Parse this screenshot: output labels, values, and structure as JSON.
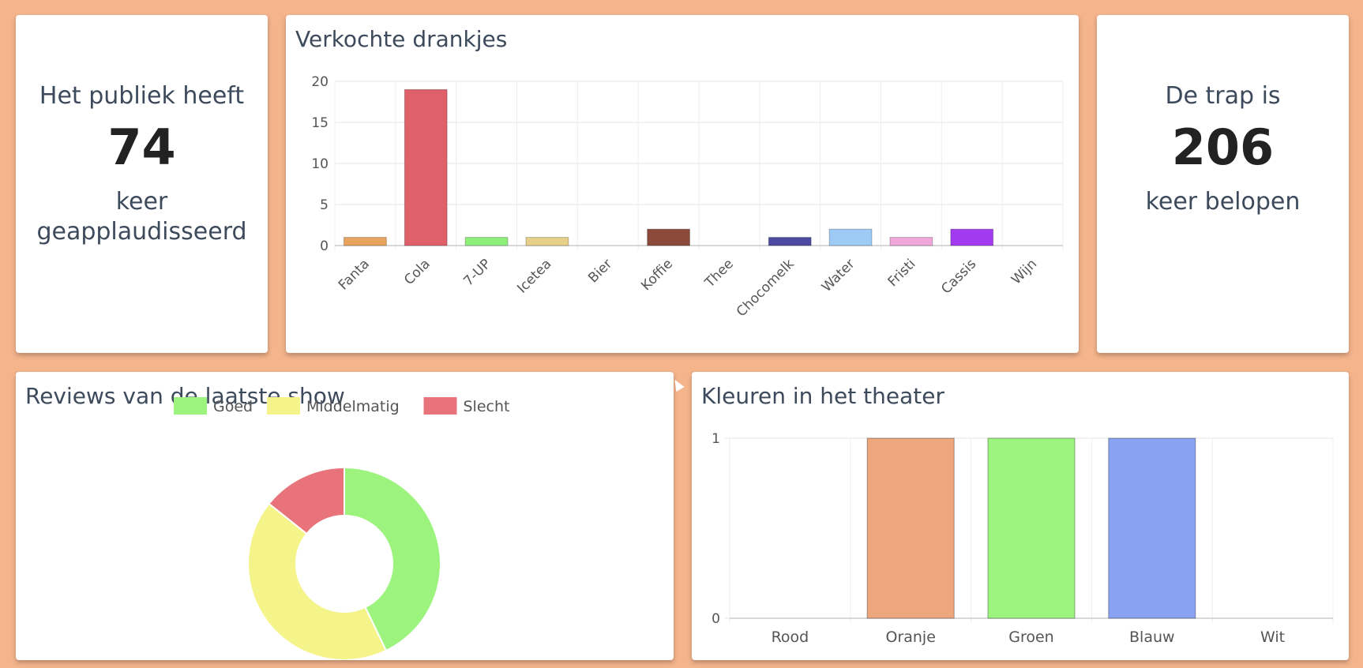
{
  "applause": {
    "prefix": "Het publiek heeft",
    "count": "74",
    "suffix_1": "keer",
    "suffix_2": "geapplaudisseerd"
  },
  "stairs": {
    "prefix": "De trap is",
    "count": "206",
    "suffix": "keer belopen"
  },
  "drinks": {
    "title": "Verkochte drankjes"
  },
  "reviews": {
    "title": "Reviews van de laatste show"
  },
  "colors_card": {
    "title": "Kleuren in het theater"
  },
  "chart_data": [
    {
      "type": "bar",
      "title": "Verkochte drankjes",
      "categories": [
        "Fanta",
        "Cola",
        "7-UP",
        "Icetea",
        "Bier",
        "Koffie",
        "Thee",
        "Chocomelk",
        "Water",
        "Fristi",
        "Cassis",
        "Wijn"
      ],
      "values": [
        1,
        19,
        1,
        1,
        0,
        2,
        0,
        1,
        2,
        1,
        2,
        0
      ],
      "colors": [
        "#e8a35c",
        "#e0606a",
        "#8ef07a",
        "#e6cf88",
        "#cccccc",
        "#8b4a3a",
        "#cccccc",
        "#4b4aa0",
        "#9ecbf6",
        "#f1a6dc",
        "#a23af0",
        "#cccccc"
      ],
      "ylim": [
        0,
        20
      ],
      "yticks": [
        0,
        5,
        10,
        15,
        20
      ],
      "grid": true
    },
    {
      "type": "pie",
      "title": "Reviews van de laatste show",
      "labels": [
        "Goed",
        "Middelmatig",
        "Slecht"
      ],
      "values": [
        3,
        3,
        1
      ],
      "colors": [
        "#9cf47e",
        "#f4f48a",
        "#e8737a"
      ],
      "legend": "top"
    },
    {
      "type": "bar",
      "title": "Kleuren in het theater",
      "categories": [
        "Rood",
        "Oranje",
        "Groen",
        "Blauw",
        "Wit"
      ],
      "values": [
        0,
        1,
        1,
        1,
        0
      ],
      "colors": [
        "#e06060",
        "#eea77d",
        "#9cf47e",
        "#89a2f2",
        "#ffffff"
      ],
      "ylim": [
        0,
        1
      ],
      "yticks": [
        0,
        1
      ],
      "grid": true
    }
  ]
}
